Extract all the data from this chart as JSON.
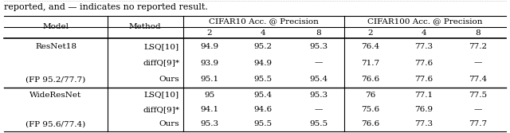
{
  "caption": "reported, and — indicates no reported result.",
  "rows": [
    [
      "ResNet18",
      "LSQ[10]",
      "94.9",
      "95.2",
      "95.3",
      "76.4",
      "77.3",
      "77.2"
    ],
    [
      "",
      "diffQ[9]*",
      "93.9",
      "94.9",
      "—",
      "71.7",
      "77.6",
      "—"
    ],
    [
      "(FP 95.2/77.7)",
      "Ours",
      "95.1",
      "95.5",
      "95.4",
      "76.6",
      "77.6",
      "77.4"
    ],
    [
      "WideResNet",
      "LSQ[10]",
      "95",
      "95.4",
      "95.3",
      "76",
      "77.1",
      "77.5"
    ],
    [
      "",
      "diffQ[9]*",
      "94.1",
      "94.6",
      "—",
      "75.6",
      "76.9",
      "—"
    ],
    [
      "(FP 95.6/77.4)",
      "Ours",
      "95.3",
      "95.5",
      "95.5",
      "76.6",
      "77.3",
      "77.7"
    ]
  ],
  "background_color": "#ffffff",
  "text_color": "#000000",
  "font_size": 7.5,
  "caption_font_size": 8.0
}
